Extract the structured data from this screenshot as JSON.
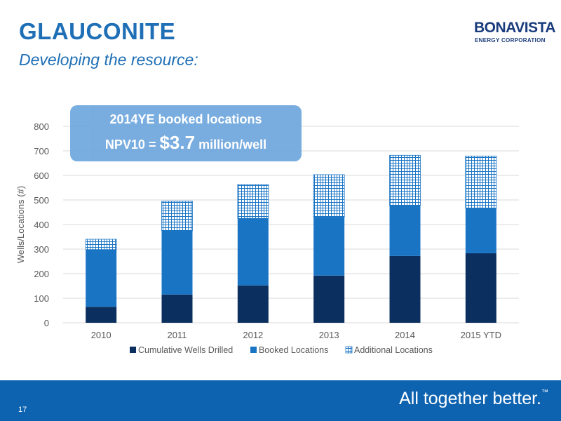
{
  "header": {
    "title": "GLAUCONITE",
    "subtitle": "Developing the resource:"
  },
  "logo": {
    "name": "BONAVISTA",
    "sub": "ENERGY CORPORATION"
  },
  "callout": {
    "line1": "2014YE booked locations",
    "line2_prefix": "NPV10 = ",
    "line2_value": "$3.7",
    "line2_suffix": " million/well"
  },
  "footer": {
    "page_number": "17",
    "tagline": "All together better.",
    "tagline_mark": "™"
  },
  "chart_data": {
    "type": "bar",
    "stacked": true,
    "categories": [
      "2010",
      "2011",
      "2012",
      "2013",
      "2014",
      "2015 YTD"
    ],
    "series": [
      {
        "name": "Cumulative Wells Drilled",
        "values": [
          65,
          115,
          152,
          192,
          272,
          283
        ],
        "color": "#0b2f5e",
        "pattern": "solid"
      },
      {
        "name": "Booked Locations",
        "values": [
          233,
          260,
          273,
          238,
          205,
          183
        ],
        "color": "#1a74c4",
        "pattern": "solid"
      },
      {
        "name": "Additional Locations",
        "values": [
          42,
          120,
          138,
          173,
          205,
          213
        ],
        "color": "#1a74c4",
        "pattern": "grid"
      }
    ],
    "ylabel": "Wells/Locations (#)",
    "xlabel": "",
    "ylim": [
      0,
      800
    ],
    "yticks": [
      0,
      100,
      200,
      300,
      400,
      500,
      600,
      700,
      800
    ],
    "grid": true,
    "legend": "bottom"
  }
}
